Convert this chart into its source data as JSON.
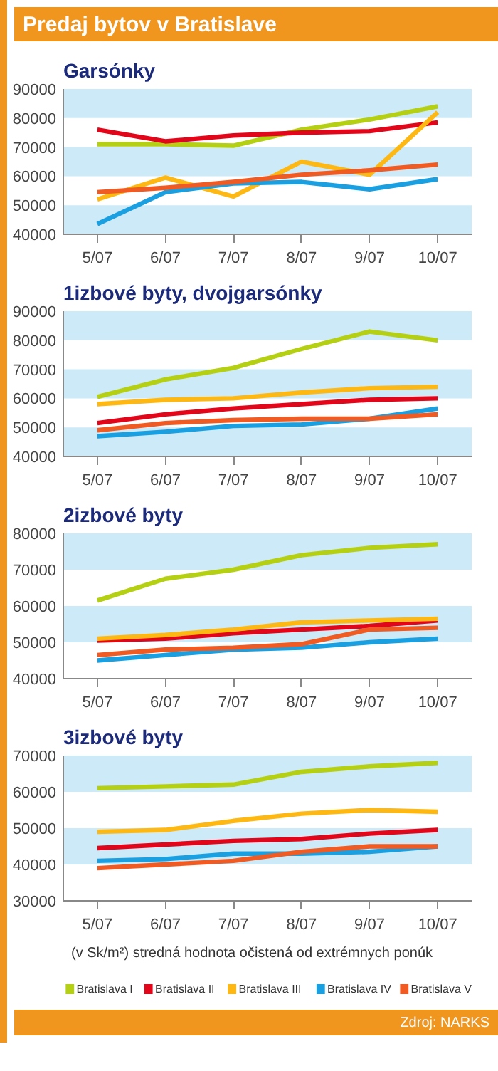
{
  "chart_data": [
    {
      "type": "line",
      "title": "Predaj bytov v Bratislave",
      "subtitle": "Garsónky",
      "categories": [
        "5/07",
        "6/07",
        "7/07",
        "8/07",
        "9/07",
        "10/07"
      ],
      "ylim": [
        40000,
        90000
      ],
      "yticks": [
        40000,
        50000,
        60000,
        70000,
        80000,
        90000
      ],
      "bands": [
        {
          "axis": "y",
          "from": 40000,
          "to": 50000,
          "color": "#cdeaf8"
        },
        {
          "axis": "y",
          "from": 60000,
          "to": 70000,
          "color": "#cdeaf8"
        },
        {
          "axis": "y",
          "from": 80000,
          "to": 90000,
          "color": "#cdeaf8"
        }
      ],
      "series": [
        {
          "color": "#b5cf12",
          "values": [
            71000,
            71000,
            70500,
            76000,
            79500,
            84000
          ]
        },
        {
          "color": "#e2061a",
          "values": [
            76000,
            72000,
            74000,
            75000,
            75500,
            78500
          ]
        },
        {
          "color": "#fdb813",
          "values": [
            52000,
            59500,
            53000,
            65000,
            60500,
            82000
          ]
        },
        {
          "color": "#1a9fe0",
          "values": [
            43500,
            54500,
            57500,
            58000,
            55500,
            59000
          ]
        },
        {
          "color": "#f05a23",
          "values": [
            54500,
            56000,
            58000,
            60500,
            62000,
            64000
          ]
        }
      ]
    },
    {
      "type": "line",
      "title": "1izbové byty, dvojgarsónky",
      "categories": [
        "5/07",
        "6/07",
        "7/07",
        "8/07",
        "9/07",
        "10/07"
      ],
      "ylim": [
        40000,
        90000
      ],
      "yticks": [
        40000,
        50000,
        60000,
        70000,
        80000,
        90000
      ],
      "bands": [
        {
          "axis": "y",
          "from": 40000,
          "to": 50000,
          "color": "#cdeaf8"
        },
        {
          "axis": "y",
          "from": 60000,
          "to": 70000,
          "color": "#cdeaf8"
        },
        {
          "axis": "y",
          "from": 80000,
          "to": 90000,
          "color": "#cdeaf8"
        }
      ],
      "series": [
        {
          "color": "#b5cf12",
          "values": [
            60500,
            66500,
            70500,
            77000,
            83000,
            80000
          ]
        },
        {
          "color": "#e2061a",
          "values": [
            51500,
            54500,
            56500,
            58000,
            59500,
            60000
          ]
        },
        {
          "color": "#fdb813",
          "values": [
            58000,
            59500,
            60000,
            62000,
            63500,
            64000
          ]
        },
        {
          "color": "#1a9fe0",
          "values": [
            47000,
            48500,
            50500,
            51000,
            53000,
            56500
          ]
        },
        {
          "color": "#f05a23",
          "values": [
            49000,
            51500,
            52500,
            53000,
            53000,
            54500
          ]
        }
      ]
    },
    {
      "type": "line",
      "title": "2izbové byty",
      "categories": [
        "5/07",
        "6/07",
        "7/07",
        "8/07",
        "9/07",
        "10/07"
      ],
      "ylim": [
        40000,
        80000
      ],
      "yticks": [
        40000,
        50000,
        60000,
        70000,
        80000
      ],
      "bands": [
        {
          "axis": "y",
          "from": 50000,
          "to": 60000,
          "color": "#cdeaf8"
        },
        {
          "axis": "y",
          "from": 70000,
          "to": 80000,
          "color": "#cdeaf8"
        }
      ],
      "series": [
        {
          "color": "#b5cf12",
          "values": [
            61500,
            67500,
            70000,
            74000,
            76000,
            77000
          ]
        },
        {
          "color": "#e2061a",
          "values": [
            50500,
            51000,
            52500,
            53500,
            54500,
            56000
          ]
        },
        {
          "color": "#fdb813",
          "values": [
            51000,
            52000,
            53500,
            55500,
            56000,
            56500
          ]
        },
        {
          "color": "#1a9fe0",
          "values": [
            45000,
            46500,
            48000,
            48500,
            50000,
            51000
          ]
        },
        {
          "color": "#f05a23",
          "values": [
            46500,
            48000,
            48500,
            49500,
            53500,
            54000
          ]
        }
      ]
    },
    {
      "type": "line",
      "title": "3izbové byty",
      "categories": [
        "5/07",
        "6/07",
        "7/07",
        "8/07",
        "9/07",
        "10/07"
      ],
      "ylim": [
        30000,
        70000
      ],
      "yticks": [
        30000,
        40000,
        50000,
        60000,
        70000
      ],
      "legend": "bottom",
      "bands": [
        {
          "axis": "y",
          "from": 40000,
          "to": 50000,
          "color": "#cdeaf8"
        },
        {
          "axis": "y",
          "from": 60000,
          "to": 70000,
          "color": "#cdeaf8"
        }
      ],
      "annotations": [
        "(v Sk/m²)  stredná hodnota očistená od extrémnych ponúk",
        "Zdroj: NARKS"
      ],
      "series": [
        {
          "name": "Bratislava I",
          "color": "#b5cf12",
          "values": [
            61000,
            61500,
            62000,
            65500,
            67000,
            68000
          ]
        },
        {
          "name": "Bratislava II",
          "color": "#e2061a",
          "values": [
            44500,
            45500,
            46500,
            47000,
            48500,
            49500
          ]
        },
        {
          "name": "Bratislava III",
          "color": "#fdb813",
          "values": [
            49000,
            49500,
            52000,
            54000,
            55000,
            54500
          ]
        },
        {
          "name": "Bratislava IV",
          "color": "#1a9fe0",
          "values": [
            41000,
            41500,
            43000,
            43000,
            43500,
            45000
          ]
        },
        {
          "name": "Bratislava V",
          "color": "#f05a23",
          "values": [
            39000,
            40000,
            41000,
            43500,
            45000,
            45000
          ]
        }
      ]
    }
  ]
}
